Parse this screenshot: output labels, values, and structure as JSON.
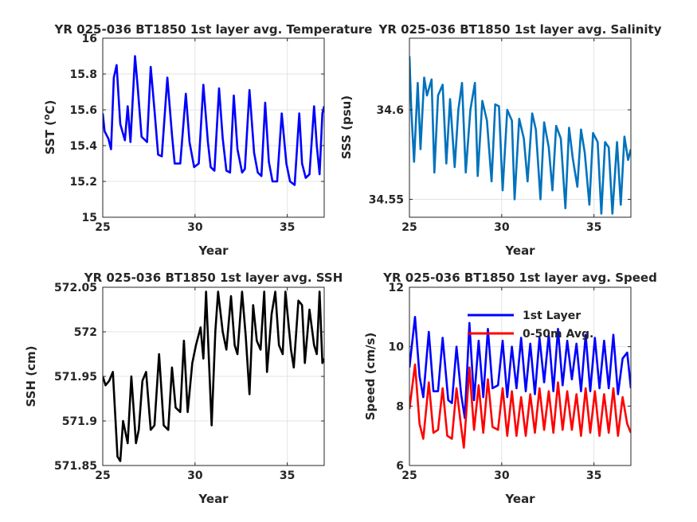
{
  "figure": {
    "background": "#ffffff",
    "axis_color": "#262626",
    "grid_color": "#e3e3e3"
  },
  "chart_data": [
    {
      "type": "line",
      "title": "YR 025-036 BT1850 1st layer avg. Temperature",
      "xlabel": "Year",
      "ylabel": "SST (°C)",
      "ylabel_base": "SST (",
      "ylabel_sup": "o",
      "ylabel_tail": "C)",
      "xlim": [
        25,
        37
      ],
      "ylim": [
        15,
        16
      ],
      "xticks": [
        25,
        30,
        35
      ],
      "yticks": [
        15,
        15.2,
        15.4,
        15.6,
        15.8,
        16
      ],
      "ytick_labels": [
        "15",
        "15.2",
        "15.4",
        "15.6",
        "15.8",
        "16"
      ],
      "grid": true,
      "series": [
        {
          "color": "#0000ff",
          "x": [
            25.0,
            25.1,
            25.3,
            25.45,
            25.6,
            25.75,
            25.95,
            26.2,
            26.35,
            26.5,
            26.75,
            26.9,
            27.1,
            27.4,
            27.6,
            27.8,
            28.0,
            28.2,
            28.5,
            28.75,
            28.9,
            29.2,
            29.5,
            29.7,
            29.95,
            30.2,
            30.45,
            30.7,
            30.85,
            31.05,
            31.3,
            31.5,
            31.7,
            31.9,
            32.1,
            32.3,
            32.55,
            32.7,
            32.95,
            33.2,
            33.4,
            33.6,
            33.8,
            34.0,
            34.2,
            34.45,
            34.7,
            34.95,
            35.15,
            35.4,
            35.65,
            35.8,
            36.0,
            36.2,
            36.45,
            36.6,
            36.75,
            36.9,
            37.0
          ],
          "y": [
            15.58,
            15.48,
            15.44,
            15.38,
            15.78,
            15.85,
            15.52,
            15.43,
            15.62,
            15.42,
            15.9,
            15.72,
            15.45,
            15.42,
            15.84,
            15.6,
            15.35,
            15.34,
            15.78,
            15.46,
            15.3,
            15.3,
            15.69,
            15.42,
            15.28,
            15.3,
            15.74,
            15.42,
            15.28,
            15.26,
            15.72,
            15.44,
            15.26,
            15.25,
            15.68,
            15.38,
            15.25,
            15.27,
            15.71,
            15.36,
            15.25,
            15.23,
            15.64,
            15.31,
            15.2,
            15.2,
            15.58,
            15.3,
            15.2,
            15.18,
            15.58,
            15.3,
            15.22,
            15.24,
            15.62,
            15.4,
            15.24,
            15.58,
            15.62
          ]
        }
      ]
    },
    {
      "type": "line",
      "title": "YR 025-036 BT1850 1st layer avg. Salinity",
      "xlabel": "Year",
      "ylabel": "SSS (psu)",
      "xlim": [
        25,
        37
      ],
      "ylim": [
        34.54,
        34.64
      ],
      "xticks": [
        25,
        30,
        35
      ],
      "yticks": [
        34.55,
        34.6
      ],
      "ytick_labels": [
        "34.55",
        "34.6"
      ],
      "grid": true,
      "series": [
        {
          "color": "#0072bd",
          "x": [
            25.0,
            25.1,
            25.25,
            25.45,
            25.6,
            25.8,
            25.95,
            26.2,
            26.35,
            26.55,
            26.8,
            27.0,
            27.2,
            27.45,
            27.65,
            27.85,
            28.05,
            28.3,
            28.55,
            28.7,
            28.95,
            29.2,
            29.45,
            29.65,
            29.85,
            30.05,
            30.3,
            30.55,
            30.7,
            30.95,
            31.2,
            31.4,
            31.65,
            31.85,
            32.1,
            32.3,
            32.55,
            32.75,
            32.95,
            33.2,
            33.45,
            33.65,
            33.85,
            34.1,
            34.3,
            34.5,
            34.75,
            34.95,
            35.2,
            35.4,
            35.6,
            35.8,
            36.0,
            36.25,
            36.45,
            36.65,
            36.85,
            37.0
          ],
          "y": [
            34.63,
            34.6,
            34.571,
            34.615,
            34.578,
            34.618,
            34.608,
            34.617,
            34.565,
            34.608,
            34.614,
            34.57,
            34.606,
            34.568,
            34.6,
            34.615,
            34.565,
            34.6,
            34.615,
            34.563,
            34.605,
            34.594,
            34.56,
            34.603,
            34.602,
            34.555,
            34.6,
            34.594,
            34.55,
            34.595,
            34.584,
            34.56,
            34.598,
            34.589,
            34.55,
            34.593,
            34.579,
            34.555,
            34.591,
            34.584,
            34.545,
            34.59,
            34.573,
            34.557,
            34.589,
            34.576,
            34.547,
            34.587,
            34.582,
            34.542,
            34.582,
            34.579,
            34.542,
            34.582,
            34.547,
            34.585,
            34.572,
            34.578
          ]
        }
      ]
    },
    {
      "type": "line",
      "title": "YR 025-036 BT1850 1st layer avg. SSH",
      "xlabel": "Year",
      "ylabel": "SSH (cm)",
      "xlim": [
        25,
        37
      ],
      "ylim": [
        571.85,
        572.05
      ],
      "xticks": [
        25,
        30,
        35
      ],
      "yticks": [
        571.85,
        571.9,
        571.95,
        572,
        572.05
      ],
      "ytick_labels": [
        "571.85",
        "571.9",
        "571.95",
        "572",
        "572.05"
      ],
      "grid": true,
      "series": [
        {
          "color": "#000000",
          "x": [
            25.0,
            25.15,
            25.35,
            25.55,
            25.8,
            25.95,
            26.1,
            26.35,
            26.55,
            26.8,
            26.95,
            27.15,
            27.35,
            27.6,
            27.8,
            28.05,
            28.3,
            28.55,
            28.75,
            28.95,
            29.2,
            29.4,
            29.6,
            29.85,
            30.05,
            30.3,
            30.45,
            30.6,
            30.9,
            31.1,
            31.25,
            31.5,
            31.7,
            31.95,
            32.15,
            32.3,
            32.55,
            32.75,
            32.95,
            33.15,
            33.35,
            33.55,
            33.75,
            33.9,
            34.15,
            34.35,
            34.55,
            34.75,
            34.9,
            35.2,
            35.35,
            35.6,
            35.8,
            35.95,
            36.2,
            36.45,
            36.6,
            36.75,
            36.9,
            37.0
          ],
          "y": [
            571.95,
            571.94,
            571.945,
            571.955,
            571.86,
            571.855,
            571.9,
            571.875,
            571.95,
            571.875,
            571.89,
            571.945,
            571.955,
            571.89,
            571.895,
            571.975,
            571.895,
            571.89,
            571.96,
            571.915,
            571.91,
            571.99,
            571.91,
            571.965,
            571.985,
            572.005,
            571.97,
            572.045,
            571.895,
            572.0,
            572.045,
            572.0,
            571.98,
            572.04,
            571.985,
            571.975,
            572.045,
            571.995,
            571.93,
            572.03,
            571.99,
            571.98,
            572.045,
            571.955,
            572.02,
            572.045,
            571.985,
            571.975,
            572.045,
            571.98,
            571.96,
            572.035,
            572.03,
            571.965,
            572.025,
            571.985,
            571.975,
            572.045,
            571.965,
            571.97
          ]
        }
      ]
    },
    {
      "type": "line",
      "title": "YR 025-036 BT1850 1st layer avg. Speed",
      "xlabel": "Year",
      "ylabel": "Speed (cm/s)",
      "xlim": [
        25,
        37
      ],
      "ylim": [
        6,
        12
      ],
      "xticks": [
        25,
        30,
        35
      ],
      "yticks": [
        6,
        8,
        10,
        12
      ],
      "ytick_labels": [
        "6",
        "8",
        "10",
        "12"
      ],
      "grid": true,
      "legend": {
        "entries": [
          "1st Layer",
          "0-50m Avg."
        ],
        "placement": "upper-middle"
      },
      "series": [
        {
          "name": "1st Layer",
          "color": "#0000ff",
          "x": [
            25.0,
            25.3,
            25.55,
            25.75,
            26.05,
            26.3,
            26.55,
            26.8,
            27.1,
            27.3,
            27.55,
            27.8,
            28.0,
            28.25,
            28.5,
            28.75,
            29.0,
            29.25,
            29.5,
            29.8,
            30.05,
            30.3,
            30.55,
            30.8,
            31.05,
            31.3,
            31.55,
            31.8,
            32.05,
            32.3,
            32.55,
            32.8,
            33.05,
            33.3,
            33.55,
            33.8,
            34.05,
            34.3,
            34.55,
            34.8,
            35.05,
            35.3,
            35.55,
            35.8,
            36.05,
            36.3,
            36.55,
            36.8,
            37.0
          ],
          "y": [
            9.3,
            11.0,
            9.0,
            8.3,
            10.5,
            8.5,
            8.5,
            10.3,
            8.2,
            8.1,
            10.0,
            8.4,
            7.6,
            10.8,
            8.2,
            10.2,
            8.3,
            10.6,
            8.6,
            8.7,
            10.2,
            8.3,
            10.0,
            8.6,
            10.3,
            8.5,
            10.1,
            8.4,
            10.3,
            8.8,
            10.4,
            8.5,
            10.6,
            8.7,
            10.2,
            8.9,
            10.1,
            8.5,
            10.4,
            8.5,
            10.3,
            8.6,
            10.2,
            8.6,
            10.4,
            8.4,
            9.6,
            9.8,
            8.6
          ]
        },
        {
          "name": "0-50m Avg.",
          "color": "#ff0000",
          "x": [
            25.0,
            25.3,
            25.55,
            25.75,
            26.05,
            26.3,
            26.55,
            26.8,
            27.05,
            27.3,
            27.55,
            27.8,
            27.95,
            28.25,
            28.5,
            28.75,
            29.0,
            29.25,
            29.5,
            29.8,
            30.05,
            30.3,
            30.55,
            30.8,
            31.05,
            31.3,
            31.55,
            31.8,
            32.05,
            32.3,
            32.55,
            32.8,
            33.05,
            33.3,
            33.55,
            33.8,
            34.05,
            34.3,
            34.55,
            34.8,
            35.05,
            35.3,
            35.55,
            35.8,
            36.05,
            36.3,
            36.55,
            36.8,
            37.0
          ],
          "y": [
            7.9,
            9.4,
            7.4,
            6.9,
            8.8,
            7.1,
            7.2,
            8.6,
            7.0,
            6.9,
            8.6,
            7.3,
            6.6,
            9.3,
            7.2,
            8.7,
            7.1,
            8.9,
            7.3,
            7.2,
            8.6,
            7.0,
            8.5,
            7.0,
            8.3,
            7.0,
            8.4,
            7.1,
            8.6,
            7.2,
            8.5,
            7.1,
            8.8,
            7.2,
            8.5,
            7.2,
            8.4,
            7.0,
            8.6,
            7.1,
            8.5,
            7.0,
            8.4,
            7.1,
            8.6,
            7.0,
            8.3,
            7.4,
            7.1
          ]
        }
      ]
    }
  ]
}
